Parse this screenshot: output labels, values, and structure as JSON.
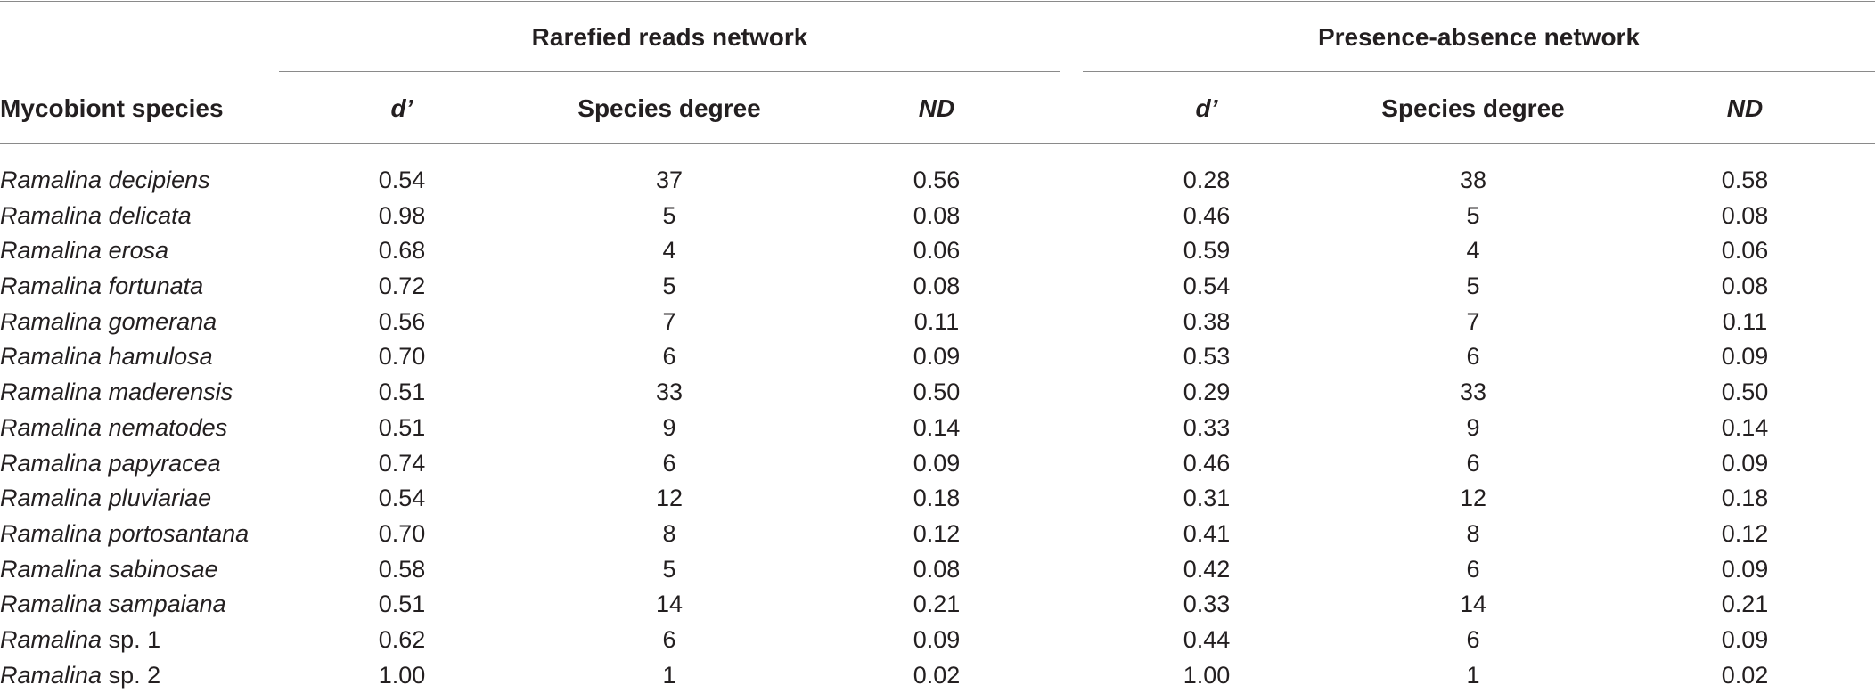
{
  "table": {
    "group_headers": {
      "rarefied": "Rarefied reads network",
      "presence": "Presence-absence network"
    },
    "column_headers": {
      "species": "Mycobiont species",
      "d_prime": "d’",
      "degree": "Species degree",
      "nd": "ND"
    },
    "rows": [
      {
        "genus": "Ramalina",
        "epithet": "decipiens",
        "epithet_italic": true,
        "r_d": "0.54",
        "r_deg": "37",
        "r_nd": "0.56",
        "p_d": "0.28",
        "p_deg": "38",
        "p_nd": "0.58"
      },
      {
        "genus": "Ramalina",
        "epithet": "delicata",
        "epithet_italic": true,
        "r_d": "0.98",
        "r_deg": "5",
        "r_nd": "0.08",
        "p_d": "0.46",
        "p_deg": "5",
        "p_nd": "0.08"
      },
      {
        "genus": "Ramalina",
        "epithet": "erosa",
        "epithet_italic": true,
        "r_d": "0.68",
        "r_deg": "4",
        "r_nd": "0.06",
        "p_d": "0.59",
        "p_deg": "4",
        "p_nd": "0.06"
      },
      {
        "genus": "Ramalina",
        "epithet": "fortunata",
        "epithet_italic": true,
        "r_d": "0.72",
        "r_deg": "5",
        "r_nd": "0.08",
        "p_d": "0.54",
        "p_deg": "5",
        "p_nd": "0.08"
      },
      {
        "genus": "Ramalina",
        "epithet": "gomerana",
        "epithet_italic": true,
        "r_d": "0.56",
        "r_deg": "7",
        "r_nd": "0.11",
        "p_d": "0.38",
        "p_deg": "7",
        "p_nd": "0.11"
      },
      {
        "genus": "Ramalina",
        "epithet": "hamulosa",
        "epithet_italic": true,
        "r_d": "0.70",
        "r_deg": "6",
        "r_nd": "0.09",
        "p_d": "0.53",
        "p_deg": "6",
        "p_nd": "0.09"
      },
      {
        "genus": "Ramalina",
        "epithet": "maderensis",
        "epithet_italic": true,
        "r_d": "0.51",
        "r_deg": "33",
        "r_nd": "0.50",
        "p_d": "0.29",
        "p_deg": "33",
        "p_nd": "0.50"
      },
      {
        "genus": "Ramalina",
        "epithet": "nematodes",
        "epithet_italic": true,
        "r_d": "0.51",
        "r_deg": "9",
        "r_nd": "0.14",
        "p_d": "0.33",
        "p_deg": "9",
        "p_nd": "0.14"
      },
      {
        "genus": "Ramalina",
        "epithet": "papyracea",
        "epithet_italic": true,
        "r_d": "0.74",
        "r_deg": "6",
        "r_nd": "0.09",
        "p_d": "0.46",
        "p_deg": "6",
        "p_nd": "0.09"
      },
      {
        "genus": "Ramalina",
        "epithet": "pluviariae",
        "epithet_italic": true,
        "r_d": "0.54",
        "r_deg": "12",
        "r_nd": "0.18",
        "p_d": "0.31",
        "p_deg": "12",
        "p_nd": "0.18"
      },
      {
        "genus": "Ramalina",
        "epithet": "portosantana",
        "epithet_italic": true,
        "r_d": "0.70",
        "r_deg": "8",
        "r_nd": "0.12",
        "p_d": "0.41",
        "p_deg": "8",
        "p_nd": "0.12"
      },
      {
        "genus": "Ramalina",
        "epithet": "sabinosae",
        "epithet_italic": true,
        "r_d": "0.58",
        "r_deg": "5",
        "r_nd": "0.08",
        "p_d": "0.42",
        "p_deg": "6",
        "p_nd": "0.09"
      },
      {
        "genus": "Ramalina",
        "epithet": "sampaiana",
        "epithet_italic": true,
        "r_d": "0.51",
        "r_deg": "14",
        "r_nd": "0.21",
        "p_d": "0.33",
        "p_deg": "14",
        "p_nd": "0.21"
      },
      {
        "genus": "Ramalina",
        "epithet": "sp. 1",
        "epithet_italic": false,
        "r_d": "0.62",
        "r_deg": "6",
        "r_nd": "0.09",
        "p_d": "0.44",
        "p_deg": "6",
        "p_nd": "0.09"
      },
      {
        "genus": "Ramalina",
        "epithet": "sp. 2",
        "epithet_italic": false,
        "r_d": "1.00",
        "r_deg": "1",
        "r_nd": "0.02",
        "p_d": "1.00",
        "p_deg": "1",
        "p_nd": "0.02"
      }
    ]
  }
}
